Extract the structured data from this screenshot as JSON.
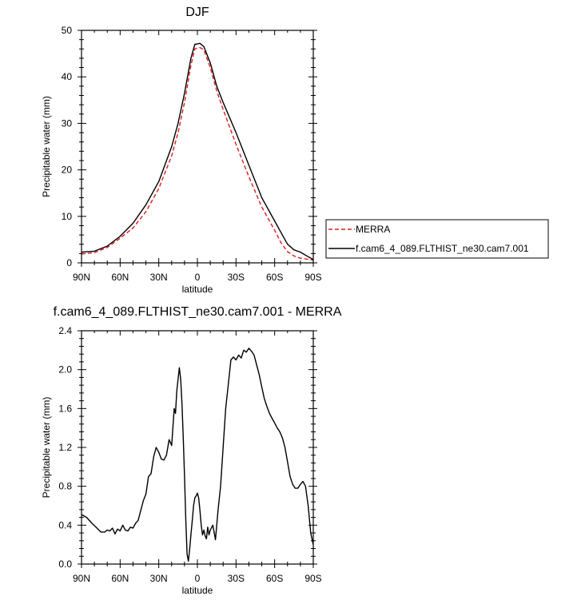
{
  "chart_data": [
    {
      "type": "line",
      "title": "DJF",
      "xlabel": "latitude",
      "ylabel": "Precipitable water (mm)",
      "xlim": [
        90,
        -90
      ],
      "ylim": [
        0,
        50
      ],
      "xticks": [
        {
          "value": 90,
          "label": "90N"
        },
        {
          "value": 60,
          "label": "60N"
        },
        {
          "value": 30,
          "label": "30N"
        },
        {
          "value": 0,
          "label": "0"
        },
        {
          "value": -30,
          "label": "30S"
        },
        {
          "value": -60,
          "label": "60S"
        },
        {
          "value": -90,
          "label": "90S"
        }
      ],
      "yticks": [
        {
          "value": 0,
          "label": "0"
        },
        {
          "value": 10,
          "label": "10"
        },
        {
          "value": 20,
          "label": "20"
        },
        {
          "value": 30,
          "label": "30"
        },
        {
          "value": 40,
          "label": "40"
        },
        {
          "value": 50,
          "label": "50"
        }
      ],
      "legend_position": "right",
      "series": [
        {
          "name": "MERRA",
          "color": "#e41a1c",
          "dash": "dashed",
          "x": [
            90,
            80,
            70,
            60,
            50,
            40,
            30,
            20,
            15,
            10,
            5,
            2,
            0,
            -2,
            -5,
            -10,
            -15,
            -20,
            -30,
            -40,
            -50,
            -60,
            -65,
            -70,
            -75,
            -80,
            -85,
            -90
          ],
          "y": [
            1.9,
            2.2,
            3.3,
            5.3,
            7.5,
            11.0,
            16.0,
            23.0,
            28.0,
            34.5,
            42.5,
            46.0,
            46.2,
            46.3,
            45.8,
            42.0,
            37.0,
            33.0,
            25.5,
            18.5,
            12.0,
            7.0,
            4.3,
            2.4,
            1.5,
            1.0,
            0.8,
            0.6
          ]
        },
        {
          "name": "f.cam6_4_089.FLTHIST_ne30.cam7.001",
          "color": "#000000",
          "dash": "solid",
          "x": [
            90,
            80,
            70,
            60,
            50,
            40,
            30,
            20,
            15,
            10,
            5,
            2,
            0,
            -2,
            -5,
            -10,
            -15,
            -20,
            -30,
            -40,
            -50,
            -60,
            -65,
            -70,
            -75,
            -80,
            -85,
            -90
          ],
          "y": [
            2.3,
            2.5,
            3.6,
            5.7,
            8.5,
            12.5,
            17.5,
            25.0,
            30.0,
            36.5,
            44.0,
            47.0,
            47.1,
            47.2,
            46.5,
            43.0,
            38.0,
            34.5,
            28.0,
            21.0,
            14.0,
            9.0,
            6.5,
            4.0,
            2.8,
            2.3,
            1.5,
            0.7
          ]
        }
      ]
    },
    {
      "type": "line",
      "title": "f.cam6_4_089.FLTHIST_ne30.cam7.001 - MERRA",
      "xlabel": "latitude",
      "ylabel": "Precipitable water (mm)",
      "xlim": [
        90,
        -90
      ],
      "ylim": [
        0,
        2.4
      ],
      "xticks": [
        {
          "value": 90,
          "label": "90N"
        },
        {
          "value": 60,
          "label": "60N"
        },
        {
          "value": 30,
          "label": "30N"
        },
        {
          "value": 0,
          "label": "0"
        },
        {
          "value": -30,
          "label": "30S"
        },
        {
          "value": -60,
          "label": "60S"
        },
        {
          "value": -90,
          "label": "90S"
        }
      ],
      "yticks": [
        {
          "value": 0,
          "label": "0.0"
        },
        {
          "value": 0.4,
          "label": "0.4"
        },
        {
          "value": 0.8,
          "label": "0.8"
        },
        {
          "value": 1.2,
          "label": "1.2"
        },
        {
          "value": 1.6,
          "label": "1.6"
        },
        {
          "value": 2.0,
          "label": "2.0"
        },
        {
          "value": 2.4,
          "label": "2.4"
        }
      ],
      "series": [
        {
          "name": "",
          "color": "#000000",
          "dash": "solid",
          "x": [
            90,
            86,
            82,
            78,
            75,
            72,
            70,
            68,
            66,
            64,
            62,
            60,
            58,
            56,
            54,
            52,
            50,
            48,
            46,
            44,
            42,
            40,
            38,
            36,
            34,
            32,
            30,
            28,
            26,
            24,
            22,
            20,
            18,
            17,
            16,
            15,
            14,
            13,
            12,
            11,
            10,
            9,
            8,
            7,
            6,
            5,
            4,
            3,
            2,
            1,
            0,
            -1,
            -2,
            -3,
            -4,
            -5,
            -6,
            -7,
            -8,
            -9,
            -10,
            -12,
            -14,
            -16,
            -18,
            -20,
            -22,
            -24,
            -26,
            -28,
            -30,
            -32,
            -34,
            -36,
            -38,
            -40,
            -42,
            -44,
            -46,
            -48,
            -50,
            -52,
            -54,
            -56,
            -58,
            -60,
            -62,
            -64,
            -66,
            -68,
            -70,
            -72,
            -74,
            -76,
            -78,
            -80,
            -82,
            -84,
            -86,
            -88,
            -90
          ],
          "y": [
            0.51,
            0.48,
            0.42,
            0.37,
            0.33,
            0.33,
            0.35,
            0.34,
            0.37,
            0.31,
            0.36,
            0.34,
            0.4,
            0.35,
            0.34,
            0.38,
            0.37,
            0.42,
            0.45,
            0.55,
            0.65,
            0.72,
            0.9,
            0.93,
            1.1,
            1.2,
            1.15,
            1.08,
            1.07,
            1.12,
            1.28,
            1.22,
            1.6,
            1.55,
            1.78,
            1.9,
            2.02,
            1.9,
            1.65,
            1.3,
            0.9,
            0.45,
            0.1,
            0.03,
            0.15,
            0.3,
            0.45,
            0.6,
            0.68,
            0.7,
            0.73,
            0.68,
            0.55,
            0.4,
            0.3,
            0.35,
            0.29,
            0.26,
            0.38,
            0.3,
            0.35,
            0.4,
            0.25,
            0.55,
            0.8,
            1.2,
            1.6,
            1.85,
            2.1,
            2.13,
            2.1,
            2.15,
            2.12,
            2.2,
            2.18,
            2.22,
            2.19,
            2.15,
            2.05,
            1.95,
            1.82,
            1.7,
            1.62,
            1.55,
            1.5,
            1.45,
            1.4,
            1.36,
            1.3,
            1.2,
            1.05,
            0.9,
            0.82,
            0.78,
            0.78,
            0.82,
            0.85,
            0.8,
            0.6,
            0.32,
            0.2
          ]
        }
      ]
    }
  ]
}
